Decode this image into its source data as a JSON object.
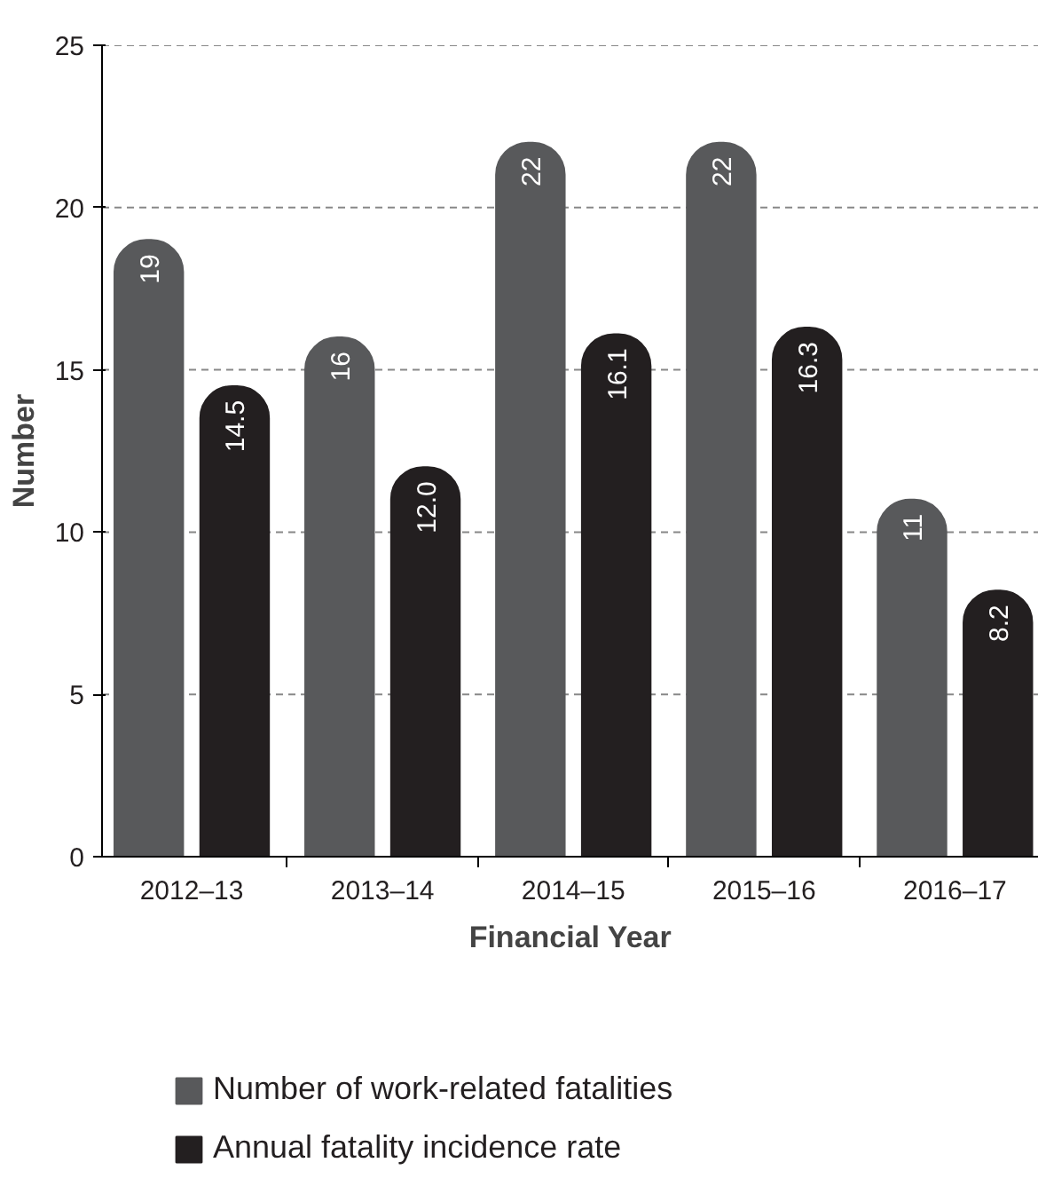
{
  "chart_data": {
    "type": "bar",
    "xlabel": "Financial Year",
    "ylabel": "Number",
    "categories": [
      "2012–13",
      "2013–14",
      "2014–15",
      "2015–16",
      "2016–17"
    ],
    "series": [
      {
        "name": "Number of work-related fatalities",
        "color": "#58595b",
        "values": [
          19,
          16,
          22,
          22,
          11
        ],
        "value_labels": [
          "19",
          "16",
          "22",
          "22",
          "11"
        ]
      },
      {
        "name": "Annual fatality incidence rate",
        "color": "#231f20",
        "values": [
          14.5,
          12.0,
          16.1,
          16.3,
          8.2
        ],
        "value_labels": [
          "14.5",
          "12.0",
          "16.1",
          "16.3",
          "8.2"
        ]
      }
    ],
    "ylim": [
      0,
      25
    ],
    "yticks": [
      0,
      5,
      10,
      15,
      20,
      25
    ],
    "grid": "y",
    "legend": "bottom"
  }
}
